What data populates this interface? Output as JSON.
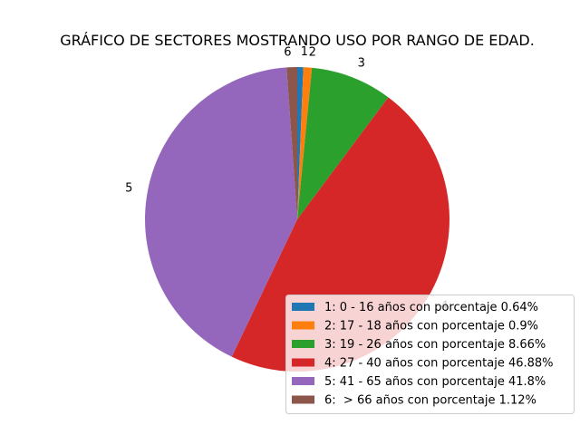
{
  "chart_data": {
    "type": "pie",
    "title": "GRÁFICO DE SECTORES MOSTRANDO USO POR RANGO DE EDAD.",
    "slices": [
      {
        "label": "1",
        "value": 0.64,
        "color": "#1f77b4",
        "legend": "1: 0 - 16 años con porcentaje 0.64%"
      },
      {
        "label": "2",
        "value": 0.9,
        "color": "#ff7f0e",
        "legend": "2: 17 - 18 años con porcentaje 0.9%"
      },
      {
        "label": "3",
        "value": 8.66,
        "color": "#2ca02c",
        "legend": "3: 19 - 26 años con porcentaje 8.66%"
      },
      {
        "label": "4",
        "value": 46.88,
        "color": "#d62728",
        "legend": "4: 27 - 40 años con porcentaje 46.88%"
      },
      {
        "label": "5",
        "value": 41.8,
        "color": "#9467bd",
        "legend": "5: 41 - 65 años con porcentaje 41.8%"
      },
      {
        "label": "6",
        "value": 1.12,
        "color": "#8c564b",
        "legend": "6:  > 66 años con porcentaje 1.12%"
      }
    ],
    "start_angle_deg": 0,
    "direction": "clockwise",
    "legend_placement": "lower-right"
  }
}
